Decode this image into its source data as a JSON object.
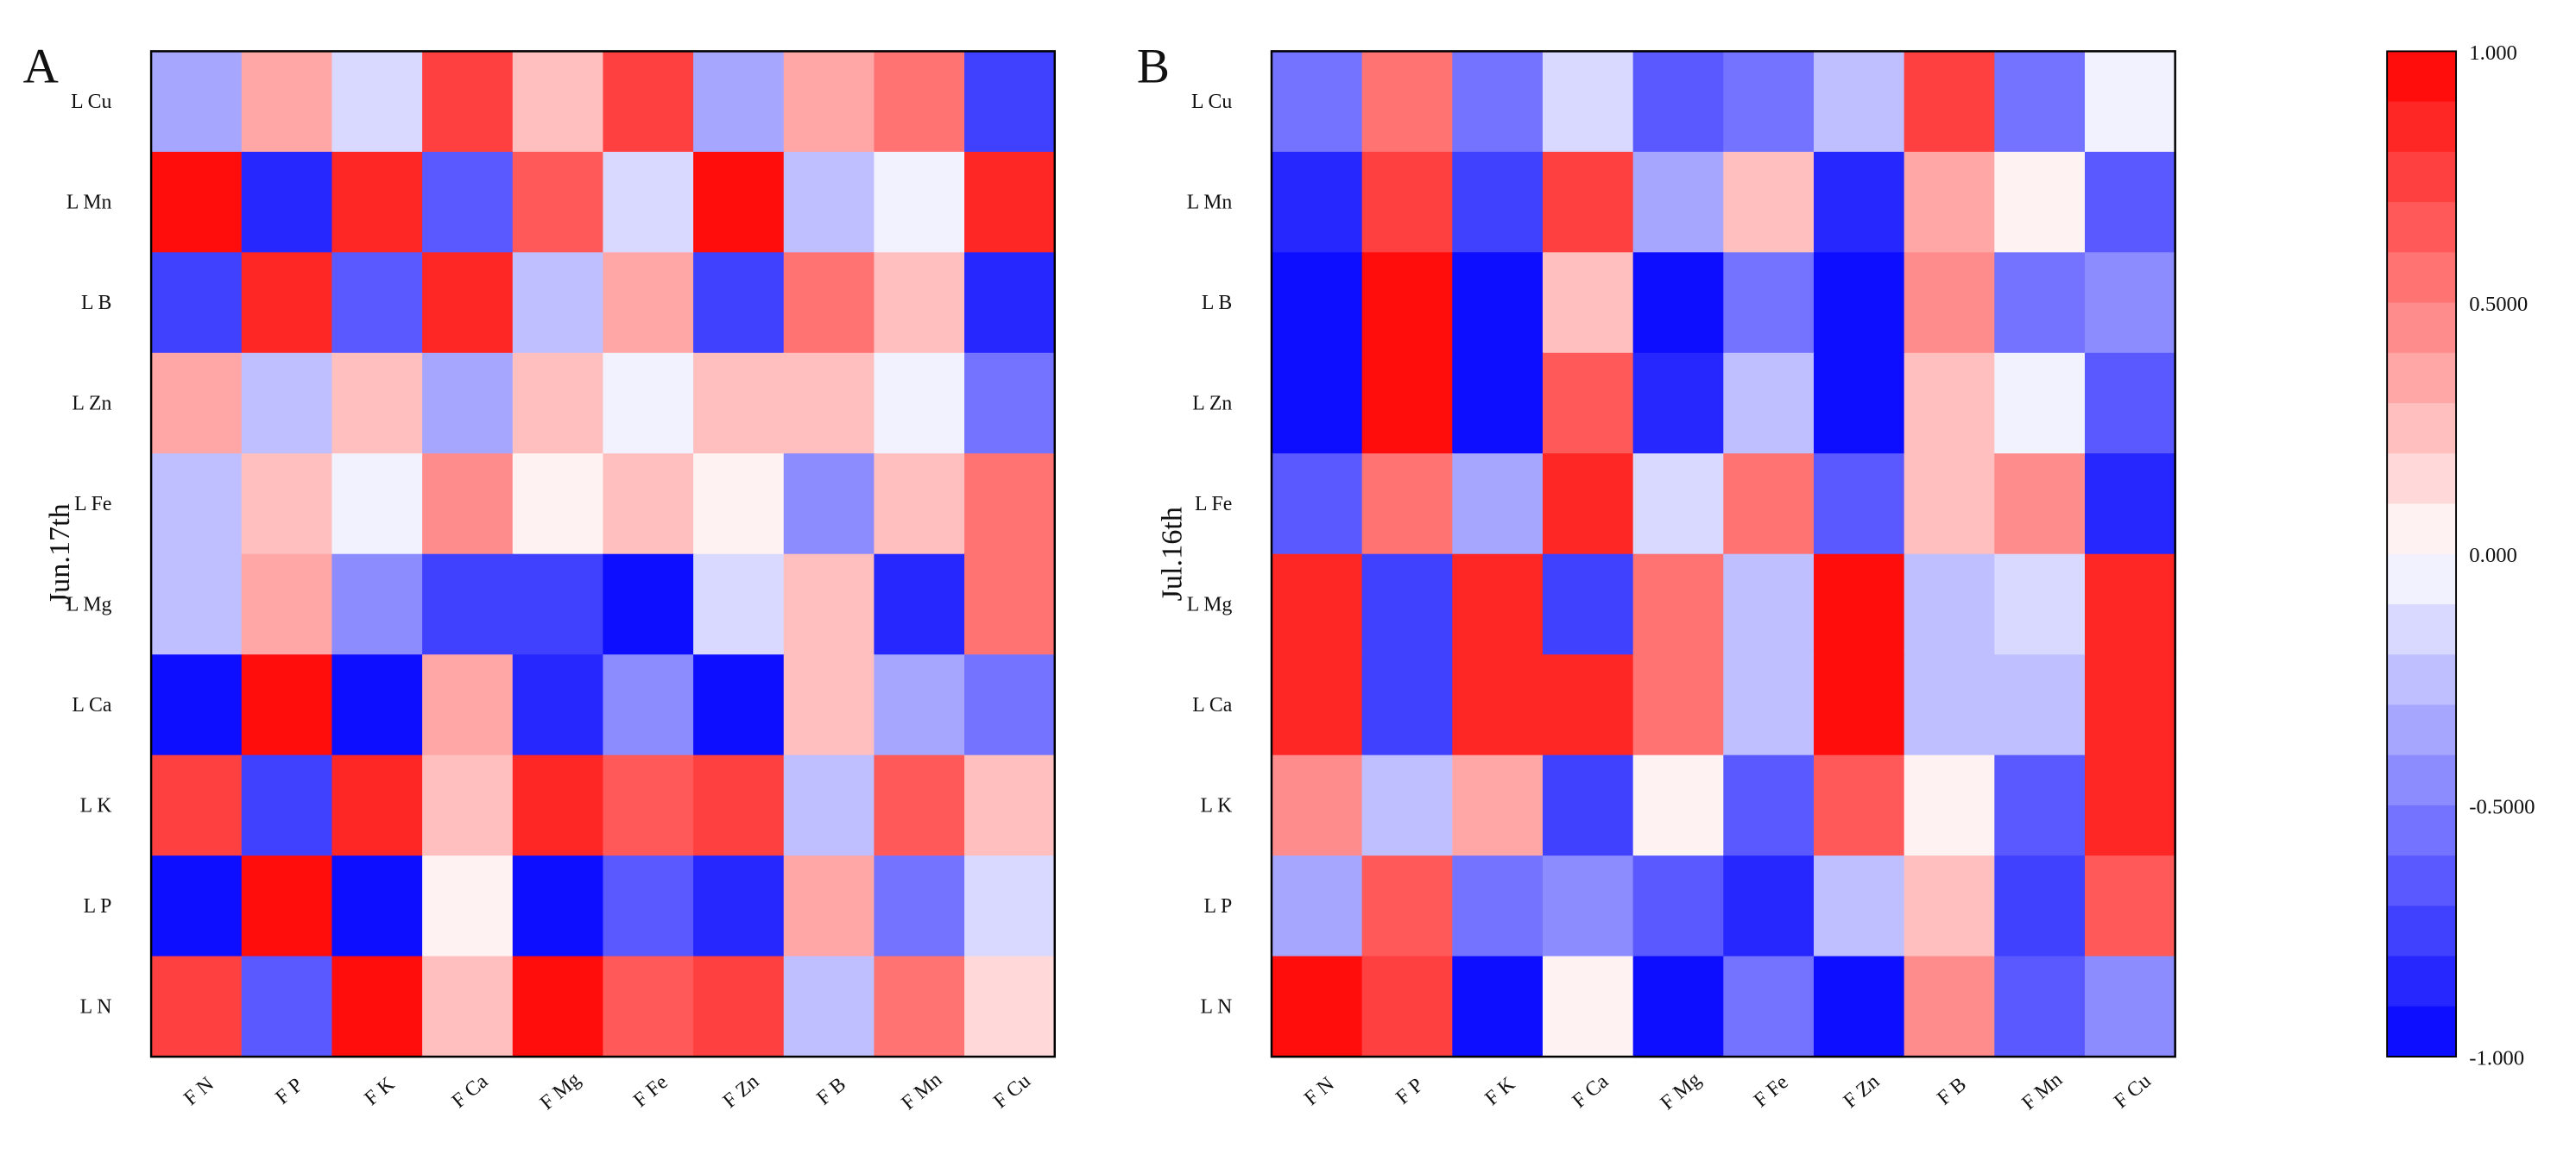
{
  "chart_data": [
    {
      "type": "heatmap",
      "panel_label": "A",
      "ylabel": "Jun.17th",
      "rows": [
        "L Cu",
        "L Mn",
        "L B",
        "L Zn",
        "L Fe",
        "L Mg",
        "L Ca",
        "L K",
        "L P",
        "L N"
      ],
      "columns": [
        "F N",
        "F P",
        "F K",
        "F Ca",
        "F Mg",
        "F Fe",
        "F Zn",
        "F B",
        "F Mn",
        "F Cu"
      ],
      "values": [
        [
          -0.35,
          0.35,
          -0.15,
          0.78,
          0.25,
          0.72,
          -0.35,
          0.35,
          0.55,
          -0.72
        ],
        [
          0.95,
          -0.85,
          0.88,
          -0.65,
          0.65,
          -0.15,
          0.98,
          -0.3,
          -0.05,
          0.8
        ],
        [
          -0.75,
          0.8,
          -0.65,
          0.8,
          -0.3,
          0.35,
          -0.75,
          0.55,
          0.25,
          -0.8
        ],
        [
          0.35,
          -0.3,
          0.25,
          -0.35,
          0.2,
          -0.05,
          0.2,
          0.25,
          -0.05,
          -0.55
        ],
        [
          -0.25,
          0.25,
          -0.05,
          0.45,
          0.02,
          0.25,
          0.02,
          -0.45,
          0.25,
          0.55
        ],
        [
          -0.25,
          0.35,
          -0.45,
          -0.75,
          -0.75,
          -0.95,
          -0.15,
          0.2,
          -0.85,
          0.55
        ],
        [
          -1.0,
          1.0,
          -1.0,
          0.35,
          -0.85,
          -0.45,
          -1.0,
          0.25,
          -0.35,
          -0.55
        ],
        [
          0.75,
          -0.75,
          0.85,
          0.25,
          0.85,
          0.65,
          0.7,
          -0.25,
          0.65,
          0.25
        ],
        [
          -0.95,
          0.92,
          -0.95,
          0.02,
          -0.95,
          -0.65,
          -0.82,
          0.35,
          -0.6,
          -0.15
        ],
        [
          0.75,
          -0.65,
          0.92,
          0.2,
          0.95,
          0.65,
          0.7,
          -0.3,
          0.5,
          0.15
        ]
      ]
    },
    {
      "type": "heatmap",
      "panel_label": "B",
      "ylabel": "Jul.16th",
      "rows": [
        "L Cu",
        "L Mn",
        "L B",
        "L Zn",
        "L Fe",
        "L Mg",
        "L Ca",
        "L K",
        "L P",
        "L N"
      ],
      "columns": [
        "F N",
        "F P",
        "F K",
        "F Ca",
        "F Mg",
        "F Fe",
        "F Zn",
        "F B",
        "F Mn",
        "F Cu"
      ],
      "values": [
        [
          -0.55,
          0.5,
          -0.55,
          -0.2,
          -0.65,
          -0.55,
          -0.3,
          0.72,
          -0.55,
          -0.03
        ],
        [
          -0.85,
          0.78,
          -0.78,
          0.7,
          -0.4,
          0.25,
          -0.85,
          0.35,
          0.02,
          -0.65
        ],
        [
          -0.95,
          0.95,
          -1.0,
          0.2,
          -0.95,
          -0.55,
          -0.95,
          0.45,
          -0.55,
          -0.45
        ],
        [
          -1.0,
          0.95,
          -1.0,
          0.65,
          -0.85,
          -0.25,
          -1.0,
          0.2,
          -0.03,
          -0.65
        ],
        [
          -0.65,
          0.5,
          -0.4,
          0.85,
          -0.15,
          0.5,
          -0.7,
          0.25,
          0.4,
          -0.85
        ],
        [
          0.85,
          -0.75,
          0.8,
          -0.75,
          0.5,
          -0.25,
          0.95,
          -0.3,
          -0.15,
          0.8
        ],
        [
          0.85,
          -0.75,
          0.8,
          0.8,
          0.5,
          -0.25,
          0.95,
          -0.25,
          -0.25,
          0.8
        ],
        [
          0.4,
          -0.25,
          0.35,
          -0.75,
          0.02,
          -0.65,
          0.65,
          0.02,
          -0.65,
          0.85
        ],
        [
          -0.4,
          0.65,
          -0.55,
          -0.45,
          -0.7,
          -0.85,
          -0.3,
          0.2,
          -0.75,
          0.65
        ],
        [
          0.92,
          0.78,
          -1.0,
          0.02,
          -0.95,
          -0.55,
          -0.95,
          0.45,
          -0.65,
          -0.45
        ]
      ]
    }
  ],
  "colorbar": {
    "min": -1.0,
    "max": 1.0,
    "tick_labels": [
      "1.000",
      "0.5000",
      "0.000",
      "-0.5000",
      "-1.000"
    ],
    "tick_values": [
      1.0,
      0.5,
      0.0,
      -0.5,
      -1.0
    ],
    "levels": 20
  },
  "colors": {
    "negative": "#0000ff",
    "neutral": "#ffffff",
    "positive": "#ff0000"
  }
}
